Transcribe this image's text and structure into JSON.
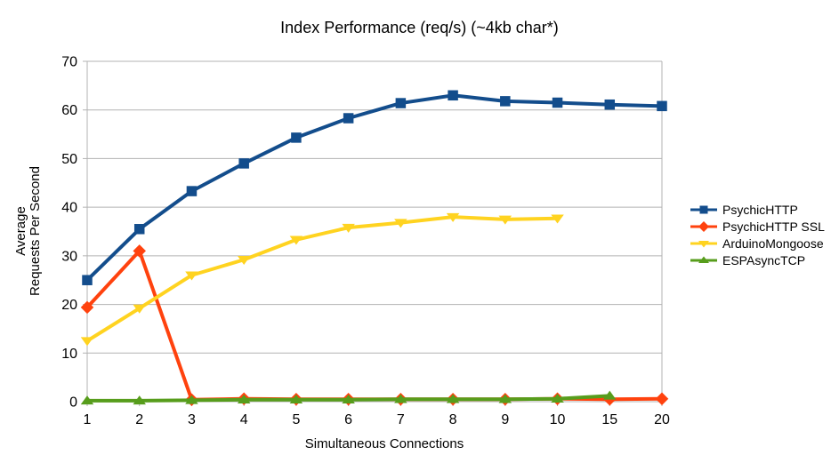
{
  "chart_data": {
    "type": "line",
    "title": "Index Performance (req/s) (~4kb char*)",
    "xlabel": "Simultaneous Connections",
    "ylabel": "Average Requests Per Second",
    "ylabel_lines": [
      "Average",
      "Requests Per Second"
    ],
    "categories": [
      "1",
      "2",
      "3",
      "4",
      "5",
      "6",
      "7",
      "8",
      "9",
      "10",
      "15",
      "20"
    ],
    "ylim": [
      0,
      70
    ],
    "ytick_step": 10,
    "yticks": [
      0,
      10,
      20,
      30,
      40,
      50,
      60,
      70
    ],
    "grid": "horizontal",
    "legend_position": "right",
    "axis_color": "#b3b3b3",
    "text_color": "#000000",
    "background": "#ffffff",
    "series": [
      {
        "name": "PsychicHTTP",
        "color": "#134d8c",
        "marker": "square",
        "values": [
          25,
          35.5,
          43.3,
          49,
          54.3,
          58.3,
          61.4,
          63,
          61.8,
          61.5,
          61.1,
          60.8
        ]
      },
      {
        "name": "PsychicHTTP SSL",
        "color": "#ff420e",
        "marker": "diamond",
        "values": [
          19.4,
          31,
          0.4,
          0.6,
          0.5,
          0.5,
          0.5,
          0.5,
          0.5,
          0.6,
          0.5,
          0.6
        ]
      },
      {
        "name": "ArduinoMongoose",
        "color": "#ffd320",
        "marker": "triangle-down",
        "values": [
          12.5,
          19.2,
          26,
          29.2,
          33.3,
          35.8,
          36.8,
          38,
          37.5,
          37.7,
          null,
          null
        ]
      },
      {
        "name": "ESPAsyncTCP",
        "color": "#579d1c",
        "marker": "triangle-up",
        "values": [
          0.2,
          0.2,
          0.3,
          0.4,
          0.4,
          0.4,
          0.5,
          0.5,
          0.5,
          0.6,
          1.2,
          null
        ]
      }
    ]
  }
}
